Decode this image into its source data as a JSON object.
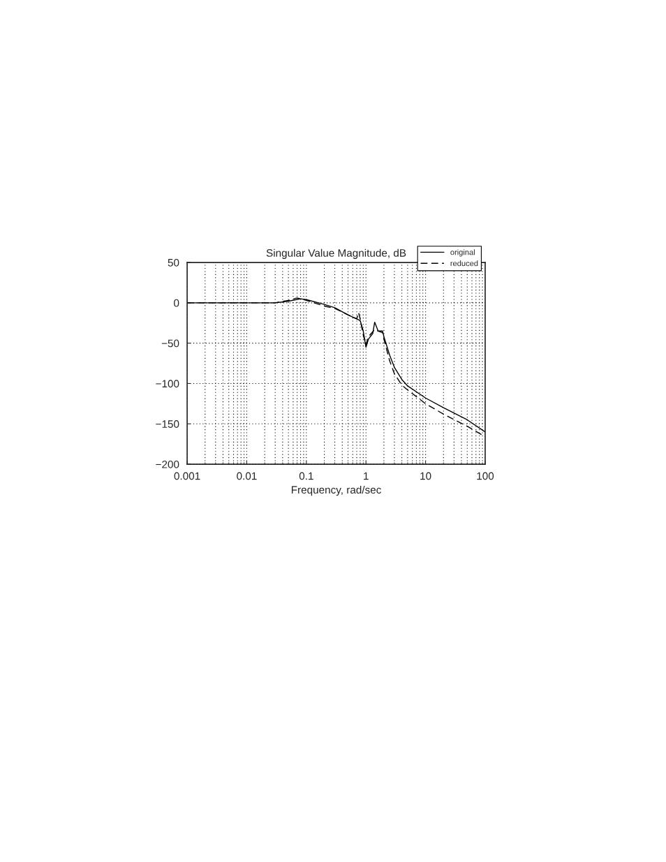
{
  "chart_data": {
    "type": "line",
    "title": "Singular Value Magnitude, dB",
    "xlabel": "Frequency, rad/sec",
    "log": "x",
    "xlim": [
      0.001,
      100
    ],
    "xticks": [
      0.001,
      0.01,
      0.1,
      1,
      10,
      100
    ],
    "ylim": [
      -200,
      50
    ],
    "yticks": [
      -200,
      -150,
      -100,
      -50,
      0,
      50
    ],
    "grid": true,
    "legend": "top right",
    "series": [
      {
        "name": "original",
        "color": "#000000",
        "line_style": "solid",
        "x": [
          0.001,
          0.03,
          0.05,
          0.08,
          0.1,
          0.2,
          0.3,
          0.5,
          0.7,
          0.8,
          0.9,
          1.0,
          1.1,
          1.3,
          1.4,
          1.6,
          1.9,
          2.0,
          2.5,
          3,
          4,
          5,
          10,
          20,
          50,
          100
        ],
        "values": [
          0,
          0,
          2,
          5,
          4,
          -2,
          -6,
          -15,
          -20,
          -22,
          -35,
          -55,
          -45,
          -38,
          -24,
          -35,
          -35,
          -42,
          -65,
          -80,
          -95,
          -103,
          -118,
          -130,
          -145,
          -160
        ]
      },
      {
        "name": "reduced",
        "color": "#000000",
        "line_style": "dashed",
        "x": [
          0.001,
          0.03,
          0.05,
          0.07,
          0.1,
          0.2,
          0.3,
          0.5,
          0.7,
          0.75,
          0.8,
          0.9,
          1.0,
          1.1,
          1.4,
          1.6,
          1.9,
          2.0,
          2.5,
          3,
          4,
          5,
          10,
          20,
          50,
          100
        ],
        "values": [
          0,
          0,
          3,
          6,
          3,
          -4,
          -7,
          -15,
          -20,
          -12,
          -20,
          -40,
          -52,
          -42,
          -33,
          -35,
          -37,
          -45,
          -72,
          -88,
          -102,
          -108,
          -125,
          -138,
          -153,
          -166
        ]
      }
    ]
  }
}
